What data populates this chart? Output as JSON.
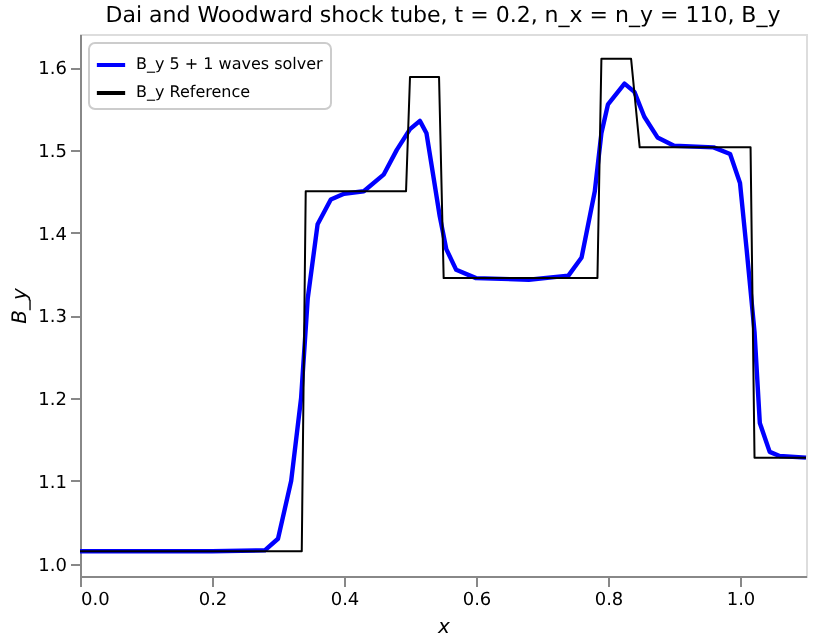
{
  "chart_data": {
    "type": "line",
    "title": "Dai and Woodward shock tube, t = 0.2, n_x = n_y = 110, B_y",
    "xlabel": "x",
    "ylabel": "B_y",
    "xlim": [
      0,
      1.1
    ],
    "ylim": [
      0.985,
      1.64
    ],
    "xticks": [
      {
        "value": 0,
        "label": "0.0"
      },
      0.2,
      0.4,
      0.6,
      0.8,
      {
        "value": 1,
        "label": "1.0"
      }
    ],
    "yticks": [
      {
        "value": 1,
        "label": "1.0"
      },
      1.1,
      1.2,
      1.3,
      1.4,
      1.5,
      1.6
    ],
    "grid": false,
    "legend": "top left",
    "marker": "none",
    "line_style": "solid",
    "series": [
      {
        "name": "B_y 5 + 1 waves solver",
        "color": "#0000ff",
        "x": [
          0,
          0.1,
          0.2,
          0.28,
          0.3,
          0.32,
          0.335,
          0.345,
          0.36,
          0.38,
          0.4,
          0.43,
          0.46,
          0.48,
          0.5,
          0.515,
          0.525,
          0.535,
          0.545,
          0.555,
          0.57,
          0.6,
          0.68,
          0.74,
          0.76,
          0.78,
          0.79,
          0.8,
          0.825,
          0.84,
          0.855,
          0.875,
          0.9,
          0.96,
          0.985,
          1.0,
          1.01,
          1.022,
          1.03,
          1.045,
          1.06,
          1.1
        ],
        "values": [
          1.015,
          1.015,
          1.015,
          1.016,
          1.03,
          1.1,
          1.2,
          1.32,
          1.41,
          1.44,
          1.447,
          1.45,
          1.47,
          1.5,
          1.525,
          1.535,
          1.52,
          1.47,
          1.42,
          1.38,
          1.355,
          1.345,
          1.343,
          1.348,
          1.37,
          1.45,
          1.52,
          1.555,
          1.58,
          1.57,
          1.54,
          1.515,
          1.505,
          1.503,
          1.495,
          1.46,
          1.38,
          1.28,
          1.17,
          1.135,
          1.13,
          1.128
        ]
      },
      {
        "name": "B_y Reference",
        "color": "#000000",
        "x": [
          0,
          0.336,
          0.342,
          0.494,
          0.5,
          0.544,
          0.551,
          0.784,
          0.79,
          0.835,
          0.848,
          1.016,
          1.022,
          1.1
        ],
        "values": [
          1.015,
          1.015,
          1.45,
          1.45,
          1.588,
          1.588,
          1.345,
          1.345,
          1.61,
          1.61,
          1.503,
          1.503,
          1.128,
          1.128
        ]
      }
    ]
  }
}
